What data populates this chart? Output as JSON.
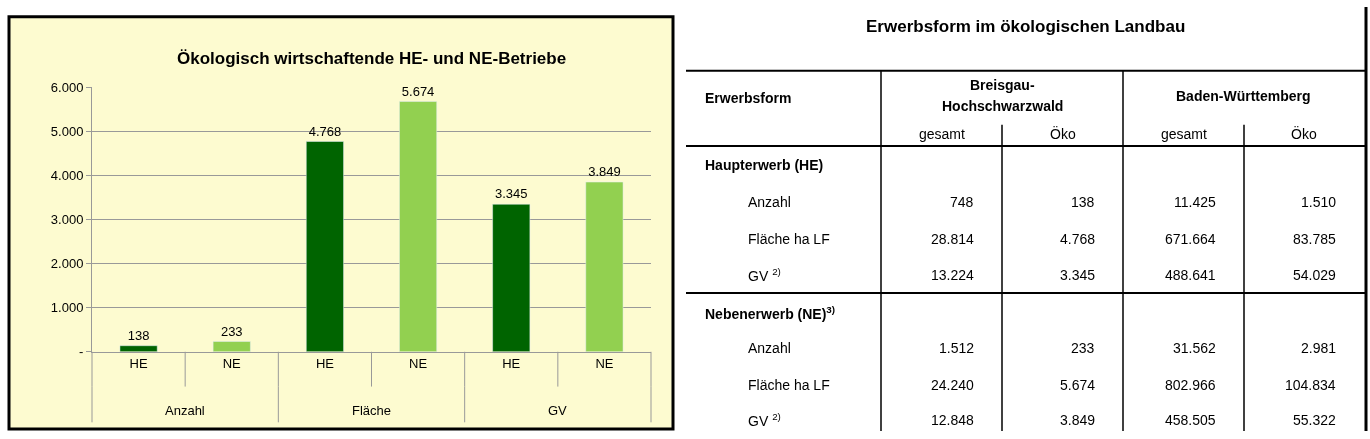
{
  "chart_data": [
    {
      "type": "bar",
      "title": "Ökologisch wirtschaftende HE- und NE-Betriebe",
      "categories": [
        "HE",
        "NE",
        "HE",
        "NE",
        "HE",
        "NE"
      ],
      "values": [
        138,
        233,
        4768,
        5674,
        3345,
        3849
      ],
      "value_labels": [
        "138",
        "233",
        "4.768",
        "5.674",
        "3.345",
        "3.849"
      ],
      "colors": [
        "#006400",
        "#92d050",
        "#006400",
        "#92d050",
        "#006400",
        "#92d050"
      ],
      "annotations": [
        "Anzahl",
        "Fläche",
        "GV"
      ],
      "ylim": [
        0,
        6000
      ],
      "yticks": [
        {
          "value": 0,
          "label": "-"
        },
        {
          "value": 1000,
          "label": "1.000"
        },
        {
          "value": 2000,
          "label": "2.000"
        },
        {
          "value": 3000,
          "label": "3.000"
        },
        {
          "value": 4000,
          "label": "4.000"
        },
        {
          "value": 5000,
          "label": "5.000"
        },
        {
          "value": 6000,
          "label": "6.000"
        }
      ],
      "grid": "y"
    },
    {
      "type": "other",
      "title": "Erwerbsform im ökologischen Landbau",
      "xlabel": "Erwerbsform",
      "annotations": [
        "Breisgau-",
        "Hochschwarzwald",
        "Baden-Württemberg"
      ],
      "categories": [
        "gesamt",
        "Öko",
        "gesamt",
        "Öko"
      ],
      "y_categories": [
        "Haupterwerb (HE)",
        "Anzahl",
        "Fläche ha LF",
        "GV $^{2)}$",
        "Nebenerwerb (NE)$^{3)}$",
        "Anzahl",
        "Fläche ha LF",
        "GV $^{2)}$"
      ],
      "cell_labels": [
        [
          null,
          null,
          null,
          null
        ],
        [
          "748",
          "138",
          "11.425",
          "1.510"
        ],
        [
          "28.814",
          "4.768",
          "671.664",
          "83.785"
        ],
        [
          "13.224",
          "3.345",
          "488.641",
          "54.029"
        ],
        [
          null,
          null,
          null,
          null
        ],
        [
          "1.512",
          "233",
          "31.562",
          "2.981"
        ],
        [
          "24.240",
          "5.674",
          "802.966",
          "104.834"
        ],
        [
          "12.848",
          "3.849",
          "458.505",
          "55.322"
        ]
      ]
    }
  ]
}
